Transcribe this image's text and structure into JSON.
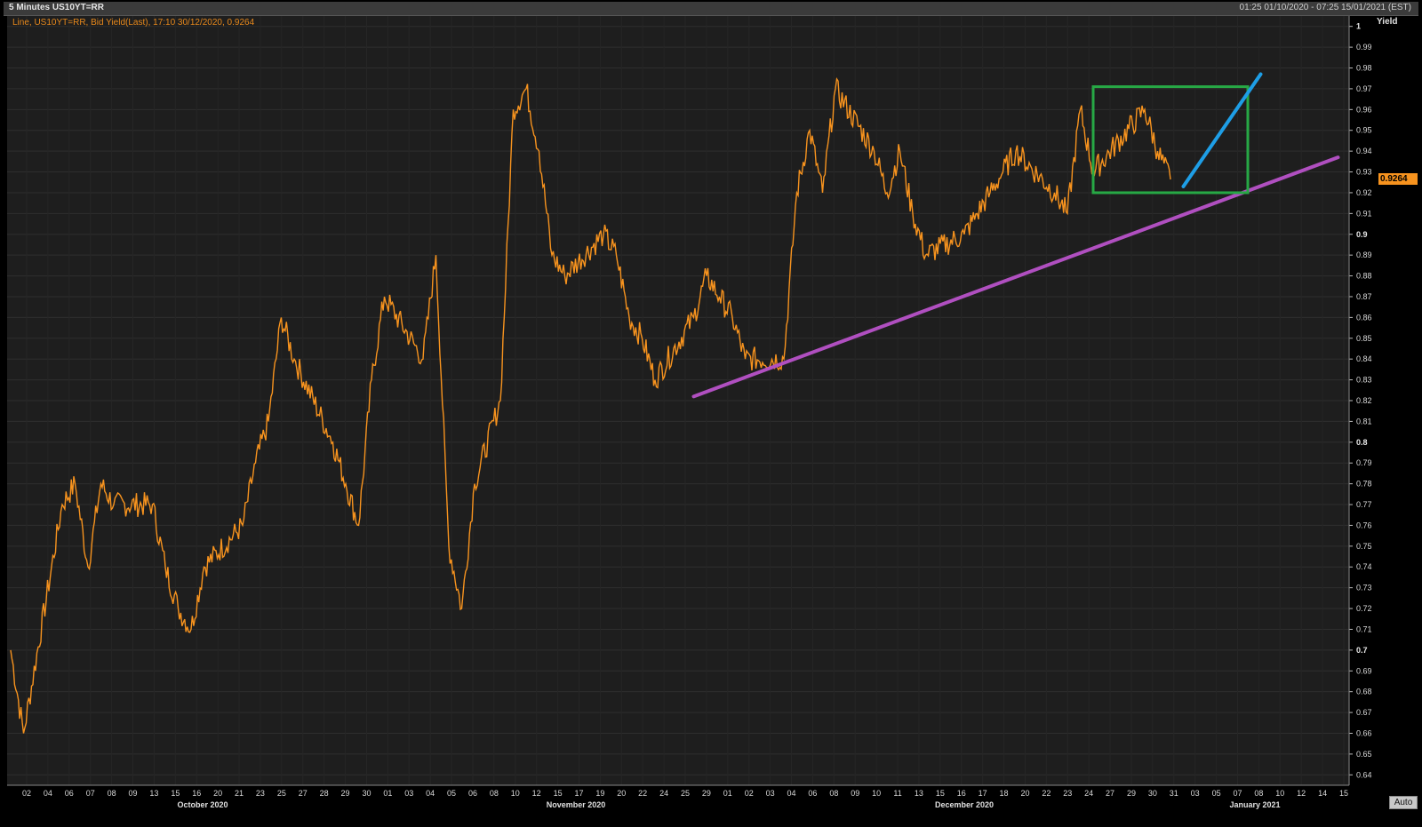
{
  "header": {
    "title": "5 Minutes US10YT=RR",
    "range": "01:25 01/10/2020 - 07:25 15/01/2021 (EST)"
  },
  "legend": {
    "text": "Line, US10YT=RR, Bid Yield(Last), 17:10 30/12/2020, 0.9264"
  },
  "y_axis_title": "Yield",
  "auto_label": "Auto",
  "colors": {
    "line": "#f7931e",
    "trend_purple": "#b04fc0",
    "box_green": "#27a845",
    "arrow_blue": "#1e9ee6",
    "grid": "#2e2e2e",
    "plot_bg": "#1e1e1e"
  },
  "chart_data": {
    "type": "line",
    "series": [
      {
        "name": "US10YT=RR Bid Yield",
        "points": [
          {
            "x": "01/10",
            "y": 0.7
          },
          {
            "x": "02/10",
            "y": 0.66
          },
          {
            "x": "05/10",
            "y": 0.77
          },
          {
            "x": "06/10",
            "y": 0.78
          },
          {
            "x": "07/10",
            "y": 0.74
          },
          {
            "x": "08/10",
            "y": 0.78
          },
          {
            "x": "09/10",
            "y": 0.77
          },
          {
            "x": "12/10",
            "y": 0.77
          },
          {
            "x": "13/10",
            "y": 0.74
          },
          {
            "x": "14/10",
            "y": 0.72
          },
          {
            "x": "15/10",
            "y": 0.71
          },
          {
            "x": "16/10",
            "y": 0.74
          },
          {
            "x": "19/10",
            "y": 0.76
          },
          {
            "x": "20/10",
            "y": 0.79
          },
          {
            "x": "21/10",
            "y": 0.81
          },
          {
            "x": "22/10",
            "y": 0.86
          },
          {
            "x": "23/10",
            "y": 0.84
          },
          {
            "x": "26/10",
            "y": 0.8
          },
          {
            "x": "27/10",
            "y": 0.78
          },
          {
            "x": "28/10",
            "y": 0.76
          },
          {
            "x": "29/10",
            "y": 0.83
          },
          {
            "x": "30/10",
            "y": 0.87
          },
          {
            "x": "02/11",
            "y": 0.84
          },
          {
            "x": "03/11",
            "y": 0.89
          },
          {
            "x": "04/11",
            "y": 0.75
          },
          {
            "x": "05/11",
            "y": 0.72
          },
          {
            "x": "06/11",
            "y": 0.78
          },
          {
            "x": "08/11",
            "y": 0.82
          },
          {
            "x": "09/11",
            "y": 0.96
          },
          {
            "x": "10/11",
            "y": 0.97
          },
          {
            "x": "11/11",
            "y": 0.94
          },
          {
            "x": "12/11",
            "y": 0.89
          },
          {
            "x": "13/11",
            "y": 0.88
          },
          {
            "x": "16/11",
            "y": 0.9
          },
          {
            "x": "17/11",
            "y": 0.89
          },
          {
            "x": "18/11",
            "y": 0.86
          },
          {
            "x": "19/11",
            "y": 0.85
          },
          {
            "x": "20/11",
            "y": 0.83
          },
          {
            "x": "23/11",
            "y": 0.86
          },
          {
            "x": "24/11",
            "y": 0.88
          },
          {
            "x": "25/11",
            "y": 0.87
          },
          {
            "x": "26/11",
            "y": 0.86
          },
          {
            "x": "27/11",
            "y": 0.84
          },
          {
            "x": "30/11",
            "y": 0.84
          },
          {
            "x": "01/12",
            "y": 0.92
          },
          {
            "x": "02/12",
            "y": 0.95
          },
          {
            "x": "03/12",
            "y": 0.92
          },
          {
            "x": "04/12",
            "y": 0.97
          },
          {
            "x": "07/12",
            "y": 0.94
          },
          {
            "x": "08/12",
            "y": 0.92
          },
          {
            "x": "09/12",
            "y": 0.94
          },
          {
            "x": "10/12",
            "y": 0.91
          },
          {
            "x": "11/12",
            "y": 0.89
          },
          {
            "x": "14/12",
            "y": 0.9
          },
          {
            "x": "15/12",
            "y": 0.91
          },
          {
            "x": "16/12",
            "y": 0.92
          },
          {
            "x": "17/12",
            "y": 0.93
          },
          {
            "x": "18/12",
            "y": 0.94
          },
          {
            "x": "21/12",
            "y": 0.92
          },
          {
            "x": "22/12",
            "y": 0.91
          },
          {
            "x": "23/12",
            "y": 0.96
          },
          {
            "x": "24/12",
            "y": 0.93
          },
          {
            "x": "28/12",
            "y": 0.96
          },
          {
            "x": "29/12",
            "y": 0.94
          },
          {
            "x": "30/12",
            "y": 0.9264
          }
        ]
      }
    ],
    "last_value": "0.9264",
    "y_ticks": [
      "1",
      "0.99",
      "0.98",
      "0.97",
      "0.96",
      "0.95",
      "0.94",
      "0.93",
      "0.92",
      "0.91",
      "0.9",
      "0.89",
      "0.88",
      "0.87",
      "0.86",
      "0.85",
      "0.84",
      "0.83",
      "0.82",
      "0.81",
      "0.8",
      "0.79",
      "0.78",
      "0.77",
      "0.76",
      "0.75",
      "0.74",
      "0.73",
      "0.72",
      "0.71",
      "0.7",
      "0.69",
      "0.68",
      "0.67",
      "0.66",
      "0.65",
      "0.64"
    ],
    "ylim": [
      0.635,
      1.005
    ],
    "x_ticks": [
      "02",
      "04",
      "06",
      "07",
      "08",
      "09",
      "13",
      "15",
      "16",
      "20",
      "21",
      "23",
      "25",
      "27",
      "28",
      "29",
      "30",
      "01",
      "03",
      "04",
      "05",
      "06",
      "08",
      "10",
      "12",
      "15",
      "17",
      "19",
      "20",
      "22",
      "24",
      "25",
      "29",
      "01",
      "02",
      "03",
      "04",
      "06",
      "08",
      "09",
      "10",
      "11",
      "13",
      "15",
      "16",
      "17",
      "18",
      "20",
      "22",
      "23",
      "24",
      "27",
      "29",
      "30",
      "31",
      "03",
      "05",
      "07",
      "08",
      "10",
      "12",
      "14",
      "15"
    ],
    "months": [
      "October 2020",
      "November 2020",
      "December 2020",
      "January 2021"
    ],
    "annotations": [
      {
        "type": "trendline",
        "color": "purple",
        "from": {
          "x": "23/11",
          "y": 0.822
        },
        "to": {
          "x": "12/01",
          "y": 0.937
        }
      },
      {
        "type": "rectangle",
        "color": "green",
        "x_range": [
          "24/12",
          "05/01"
        ],
        "y_range": [
          0.92,
          0.971
        ]
      },
      {
        "type": "arrow-line",
        "color": "blue",
        "from": {
          "x": "31/12",
          "y": 0.923
        },
        "to": {
          "x": "06/01",
          "y": 0.977
        }
      }
    ],
    "grid": true
  }
}
